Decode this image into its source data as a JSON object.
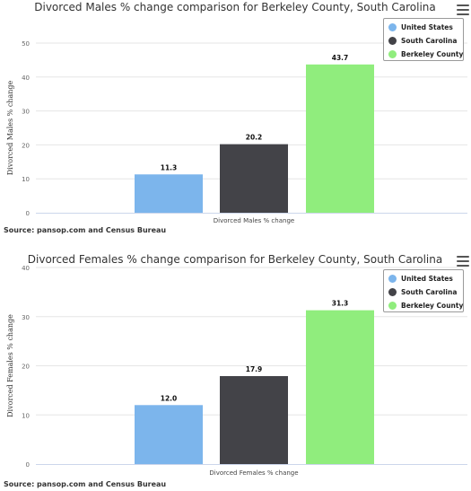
{
  "charts": [
    {
      "title": "Divorced Males % change comparison for Berkeley County, South Carolina",
      "source": "Source: pansop.com and Census Bureau",
      "legend": [
        {
          "label": "United States",
          "color": "#7cb5ec"
        },
        {
          "label": "South Carolina",
          "color": "#434348"
        },
        {
          "label": "Berkeley County",
          "color": "#90ed7d"
        }
      ]
    },
    {
      "title": "Divorced Females % change comparison for Berkeley County, South Carolina",
      "source": "Source: pansop.com and Census Bureau",
      "legend": [
        {
          "label": "United States",
          "color": "#7cb5ec"
        },
        {
          "label": "South Carolina",
          "color": "#434348"
        },
        {
          "label": "Berkeley County",
          "color": "#90ed7d"
        }
      ]
    }
  ],
  "chart_data": [
    {
      "type": "bar",
      "title": "Divorced Males % change comparison for Berkeley County, South Carolina",
      "categories": [
        "Divorced Males % change"
      ],
      "series": [
        {
          "name": "United States",
          "values": [
            11.3
          ],
          "color": "#7cb5ec"
        },
        {
          "name": "South Carolina",
          "values": [
            20.2
          ],
          "color": "#434348"
        },
        {
          "name": "Berkeley County",
          "values": [
            43.7
          ],
          "color": "#90ed7d"
        }
      ],
      "xlabel": "Divorced Males % change",
      "ylabel": "Divorced Males % change",
      "ylim": [
        0,
        50
      ],
      "yticks": [
        0,
        10,
        20,
        30,
        40,
        50
      ],
      "grid": true,
      "legend_position": "top-right"
    },
    {
      "type": "bar",
      "title": "Divorced Females % change comparison for Berkeley County, South Carolina",
      "categories": [
        "Divorced Females % change"
      ],
      "series": [
        {
          "name": "United States",
          "values": [
            12.0
          ],
          "color": "#7cb5ec"
        },
        {
          "name": "South Carolina",
          "values": [
            17.9
          ],
          "color": "#434348"
        },
        {
          "name": "Berkeley County",
          "values": [
            31.3
          ],
          "color": "#90ed7d"
        }
      ],
      "xlabel": "Divorced Females % change",
      "ylabel": "Divorced Females % change",
      "ylim": [
        0,
        40
      ],
      "yticks": [
        0,
        10,
        20,
        30,
        40
      ],
      "grid": true,
      "legend_position": "top-right"
    }
  ]
}
